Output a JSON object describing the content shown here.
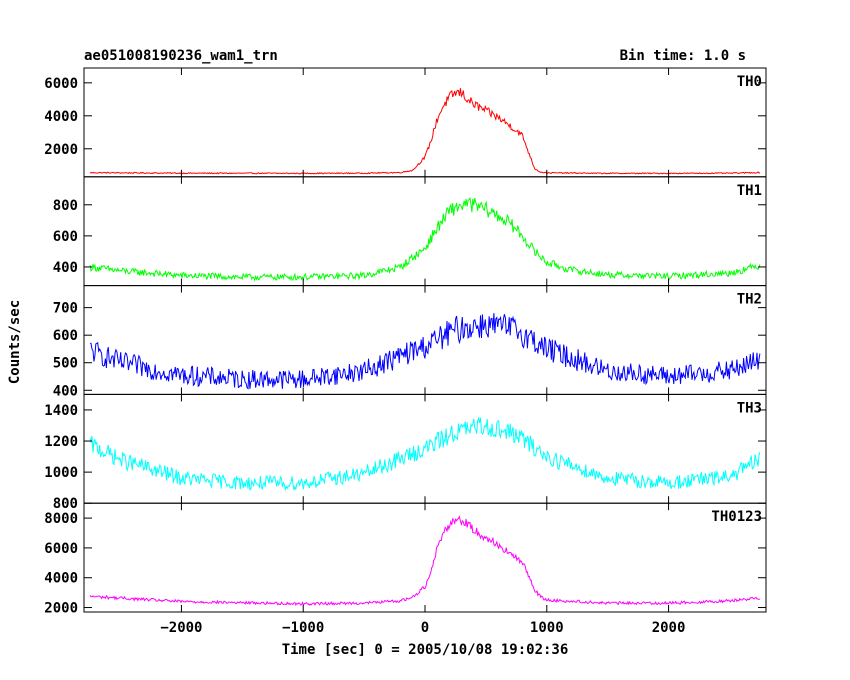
{
  "header": {
    "title": "ae051008190236_wam1_trn",
    "bin_time": "Bin time: 1.0 s"
  },
  "chart_data": {
    "type": "line",
    "xlabel": "Time [sec] 0 = 2005/10/08 19:02:36",
    "ylabel": "Counts/sec",
    "xlim": [
      -2800,
      2800
    ],
    "x_ticks": [
      -2000,
      -1000,
      0,
      1000,
      2000
    ],
    "x_tick_labels": [
      "−2000",
      "−1000",
      "0",
      "1000",
      "2000"
    ],
    "grid": false,
    "panels": [
      {
        "name": "TH0",
        "color": "#ff0000",
        "ylim": [
          300,
          6900
        ],
        "y_ticks": [
          2000,
          4000,
          6000
        ],
        "y_tick_labels": [
          "2000",
          "4000",
          "6000"
        ],
        "noise": 0.06,
        "x": [
          -2750,
          -2000,
          -1000,
          -500,
          -200,
          -100,
          0,
          50,
          100,
          150,
          200,
          250,
          300,
          350,
          400,
          500,
          600,
          700,
          800,
          850,
          900,
          950,
          1000,
          1500,
          2000,
          2500,
          2750
        ],
        "y": [
          550,
          520,
          510,
          520,
          560,
          700,
          1500,
          2500,
          3800,
          4600,
          5100,
          5400,
          5400,
          5000,
          4700,
          4300,
          3900,
          3400,
          2800,
          1800,
          800,
          580,
          540,
          510,
          510,
          520,
          560
        ]
      },
      {
        "name": "TH1",
        "color": "#00ff00",
        "ylim": [
          280,
          980
        ],
        "y_ticks": [
          400,
          600,
          800
        ],
        "y_tick_labels": [
          "400",
          "600",
          "800"
        ],
        "noise": 0.06,
        "x": [
          -2750,
          -2500,
          -2000,
          -1500,
          -1000,
          -500,
          -200,
          0,
          100,
          200,
          300,
          400,
          500,
          600,
          700,
          800,
          900,
          1000,
          1200,
          1500,
          2000,
          2500,
          2750
        ],
        "y": [
          400,
          375,
          345,
          335,
          335,
          345,
          400,
          520,
          650,
          760,
          800,
          800,
          770,
          730,
          680,
          600,
          500,
          430,
          380,
          350,
          340,
          360,
          410
        ]
      },
      {
        "name": "TH2",
        "color": "#0000ff",
        "ylim": [
          385,
          780
        ],
        "y_ticks": [
          400,
          500,
          600,
          700
        ],
        "y_tick_labels": [
          "400",
          "500",
          "600",
          "700"
        ],
        "noise": 0.08,
        "x": [
          -2750,
          -2500,
          -2000,
          -1500,
          -1000,
          -500,
          0,
          250,
          500,
          750,
          1000,
          1500,
          2000,
          2500,
          2750
        ],
        "y": [
          545,
          500,
          455,
          440,
          440,
          470,
          560,
          620,
          640,
          620,
          550,
          470,
          450,
          470,
          510
        ]
      },
      {
        "name": "TH3",
        "color": "#00ffff",
        "ylim": [
          800,
          1500
        ],
        "y_ticks": [
          800,
          1000,
          1200,
          1400
        ],
        "y_tick_labels": [
          "800",
          "1000",
          "1200",
          "1400"
        ],
        "noise": 0.05,
        "x": [
          -2750,
          -2500,
          -2000,
          -1500,
          -1000,
          -500,
          0,
          250,
          500,
          750,
          1000,
          1500,
          2000,
          2500,
          2750
        ],
        "y": [
          1180,
          1080,
          960,
          930,
          930,
          990,
          1150,
          1260,
          1300,
          1240,
          1100,
          960,
          930,
          970,
          1080
        ]
      },
      {
        "name": "TH0123",
        "color": "#ff00ff",
        "ylim": [
          1700,
          9000
        ],
        "y_ticks": [
          2000,
          4000,
          6000,
          8000
        ],
        "y_tick_labels": [
          "2000",
          "4000",
          "6000",
          "8000"
        ],
        "noise": 0.04,
        "x": [
          -2750,
          -2000,
          -1000,
          -500,
          -200,
          -100,
          0,
          50,
          100,
          150,
          200,
          250,
          300,
          350,
          400,
          500,
          600,
          700,
          800,
          850,
          900,
          950,
          1000,
          1500,
          2000,
          2500,
          2750
        ],
        "y": [
          2750,
          2400,
          2250,
          2300,
          2450,
          2700,
          3400,
          4500,
          6000,
          7000,
          7600,
          7900,
          7900,
          7600,
          7200,
          6700,
          6200,
          5600,
          5000,
          4200,
          3200,
          2700,
          2500,
          2300,
          2300,
          2450,
          2650
        ]
      }
    ]
  }
}
